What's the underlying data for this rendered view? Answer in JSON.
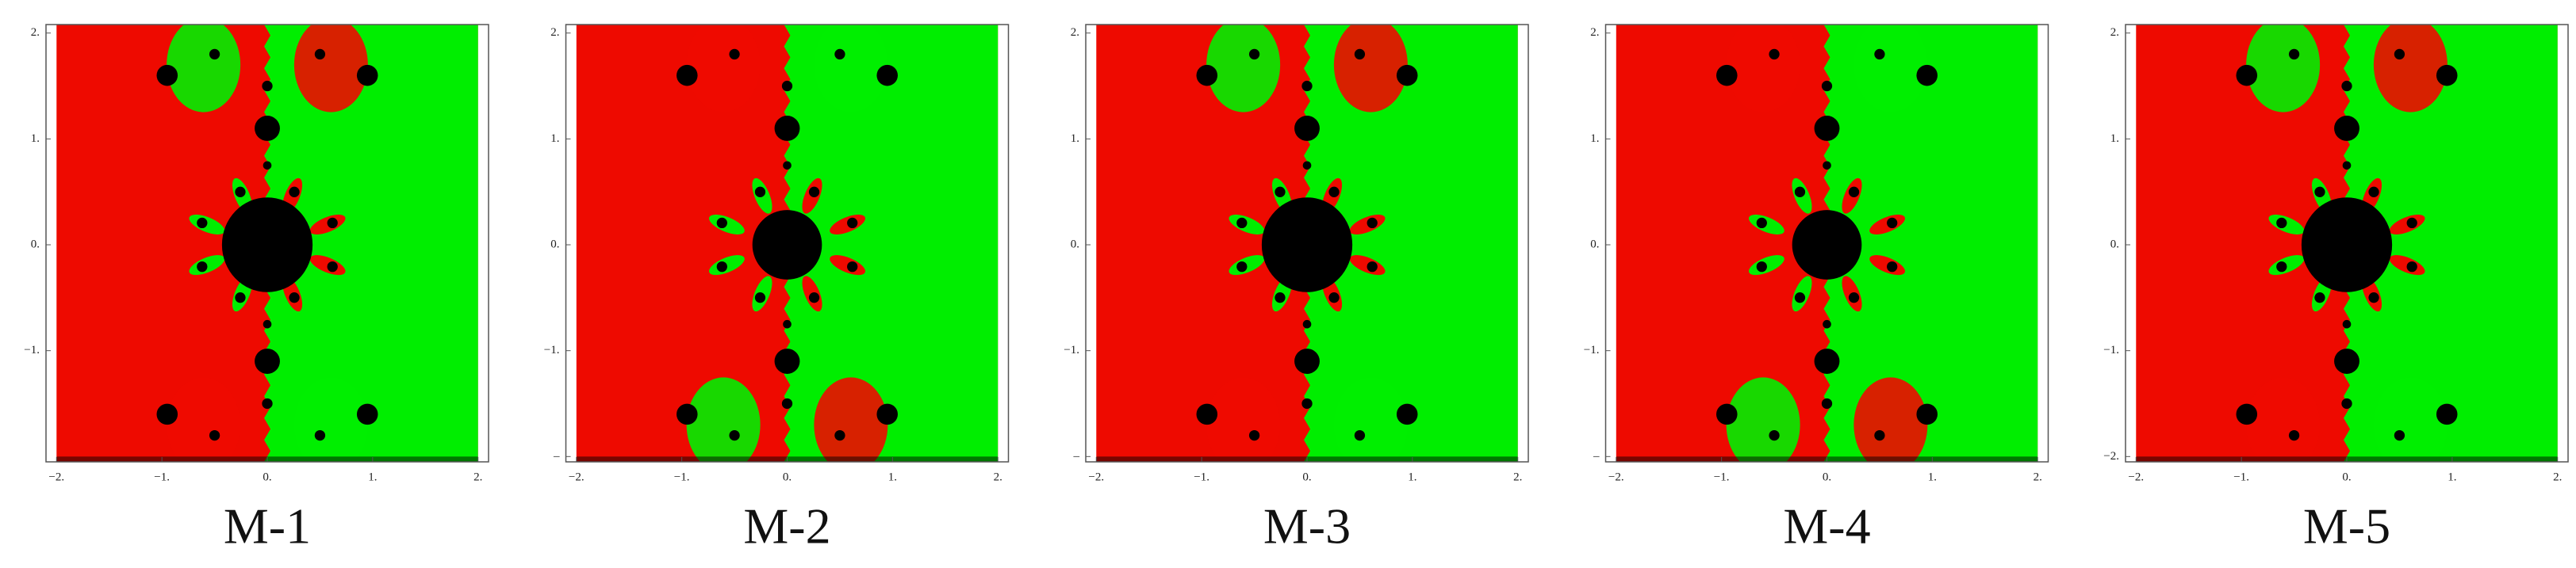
{
  "chart_data": [
    {
      "type": "basin",
      "title": "M-1",
      "xlim": [
        -2.1,
        2.1
      ],
      "ylim": [
        -2.05,
        2.08
      ],
      "xticks": [
        {
          "value": -2,
          "label": "−2."
        },
        {
          "value": -1,
          "label": "−1."
        },
        {
          "value": 0,
          "label": "0."
        },
        {
          "value": 1,
          "label": "1."
        },
        {
          "value": 2,
          "label": "2."
        }
      ],
      "yticks": [
        {
          "value": -1,
          "label": "−1."
        },
        {
          "value": 0,
          "label": "0."
        },
        {
          "value": 1,
          "label": "1."
        },
        {
          "value": 2,
          "label": "2."
        }
      ]
    },
    {
      "type": "basin",
      "title": "M-2",
      "xlim": [
        -2.1,
        2.1
      ],
      "ylim": [
        -2.05,
        2.08
      ],
      "xticks": [
        {
          "value": -2,
          "label": "−2."
        },
        {
          "value": -1,
          "label": "−1."
        },
        {
          "value": 0,
          "label": "0."
        },
        {
          "value": 1,
          "label": "1."
        },
        {
          "value": 2,
          "label": "2."
        }
      ],
      "yticks": [
        {
          "value": -2,
          "label": "–"
        },
        {
          "value": -1,
          "label": "−1."
        },
        {
          "value": 0,
          "label": "0."
        },
        {
          "value": 1,
          "label": "1."
        },
        {
          "value": 2,
          "label": "2."
        }
      ]
    },
    {
      "type": "basin",
      "title": "M-3",
      "xlim": [
        -2.1,
        2.1
      ],
      "ylim": [
        -2.05,
        2.08
      ],
      "xticks": [
        {
          "value": -2,
          "label": "−2."
        },
        {
          "value": -1,
          "label": "−1."
        },
        {
          "value": 0,
          "label": "0."
        },
        {
          "value": 1,
          "label": "1."
        },
        {
          "value": 2,
          "label": "2."
        }
      ],
      "yticks": [
        {
          "value": -2,
          "label": "–"
        },
        {
          "value": -1,
          "label": "−1."
        },
        {
          "value": 0,
          "label": "0."
        },
        {
          "value": 1,
          "label": "1."
        },
        {
          "value": 2,
          "label": "2."
        }
      ]
    },
    {
      "type": "basin",
      "title": "M-4",
      "xlim": [
        -2.1,
        2.1
      ],
      "ylim": [
        -2.05,
        2.08
      ],
      "xticks": [
        {
          "value": -2,
          "label": "−2."
        },
        {
          "value": -1,
          "label": "−1."
        },
        {
          "value": 0,
          "label": "0."
        },
        {
          "value": 1,
          "label": "1."
        },
        {
          "value": 2,
          "label": "2."
        }
      ],
      "yticks": [
        {
          "value": -2,
          "label": "–"
        },
        {
          "value": -1,
          "label": "−1."
        },
        {
          "value": 0,
          "label": "0."
        },
        {
          "value": 1,
          "label": "1."
        },
        {
          "value": 2,
          "label": "2."
        }
      ]
    },
    {
      "type": "basin",
      "title": "M-5",
      "xlim": [
        -2.1,
        2.1
      ],
      "ylim": [
        -2.05,
        2.08
      ],
      "xticks": [
        {
          "value": -2,
          "label": "−2."
        },
        {
          "value": -1,
          "label": "−1."
        },
        {
          "value": 0,
          "label": "0."
        },
        {
          "value": 1,
          "label": "1."
        },
        {
          "value": 2,
          "label": "2."
        }
      ],
      "yticks": [
        {
          "value": -2,
          "label": "−2."
        },
        {
          "value": -1,
          "label": "−1."
        },
        {
          "value": 0,
          "label": "0."
        },
        {
          "value": 1,
          "label": "1."
        },
        {
          "value": 2,
          "label": "2."
        }
      ]
    }
  ]
}
